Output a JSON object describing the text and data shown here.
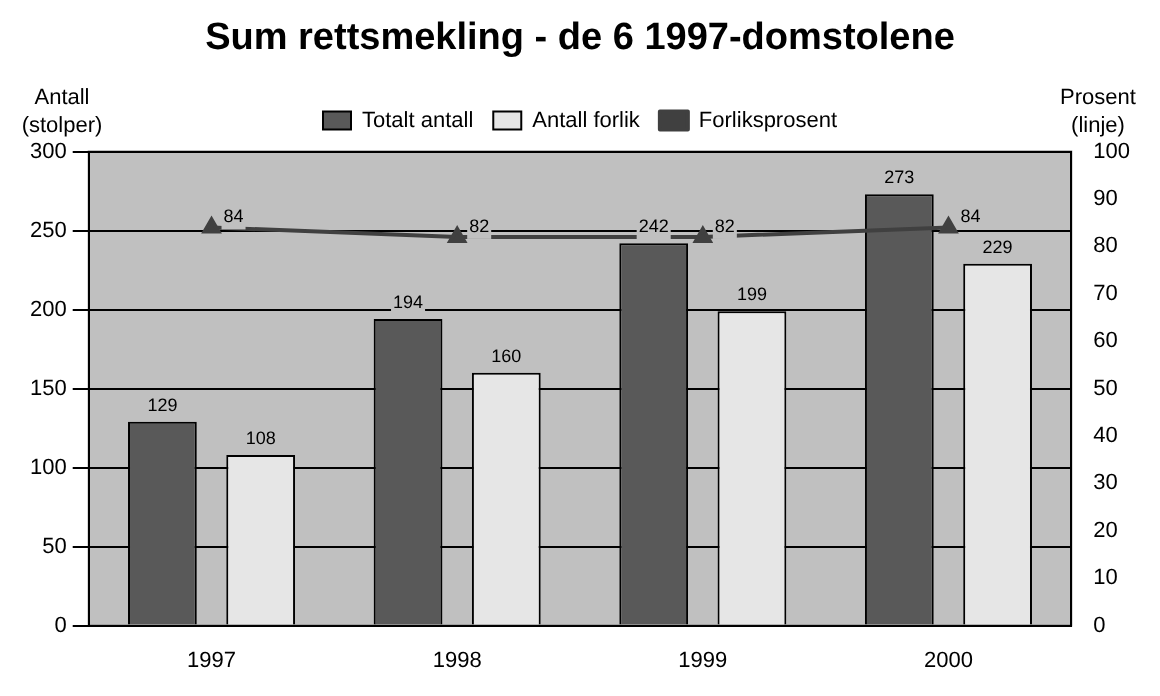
{
  "chart_data": {
    "type": "bar",
    "title": "Sum rettsmekling - de 6 1997-domstolene",
    "ylabel": "Antall (stolper)",
    "y2label": "Prosent (linje)",
    "categories": [
      "1997",
      "1998",
      "1999",
      "2000"
    ],
    "series": [
      {
        "name": "Totalt antall",
        "color": "#595959",
        "values": [
          129,
          194,
          242,
          273
        ]
      },
      {
        "name": "Antall forlik",
        "color": "#e6e6e6",
        "values": [
          108,
          160,
          199,
          229
        ]
      },
      {
        "name": "Forliksprosent",
        "type": "line",
        "axis": "y2",
        "color": "#404040",
        "values": [
          84,
          82,
          82,
          84
        ],
        "marker": "triangle"
      }
    ],
    "ylim": [
      0,
      300
    ],
    "yticks": [
      0,
      50,
      100,
      150,
      200,
      250,
      300
    ],
    "y2lim": [
      0,
      100
    ],
    "y2ticks": [
      0,
      10,
      20,
      30,
      40,
      50,
      60,
      70,
      80,
      90,
      100
    ],
    "grid": "y",
    "legend": "top",
    "data_labels": true
  }
}
